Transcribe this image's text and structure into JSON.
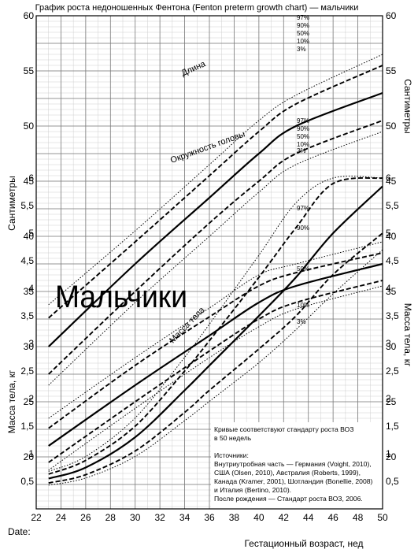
{
  "chart_data": {
    "type": "line",
    "title": "График роста недоношенных Фентона (Fenton preterm growth chart) — мальчики",
    "xlabel": "Гестационный возраст, нед",
    "x_ticks": [
      "22",
      "24",
      "26",
      "28",
      "30",
      "32",
      "34",
      "36",
      "38",
      "40",
      "42",
      "44",
      "46",
      "48",
      "50"
    ],
    "xlim": [
      22,
      50
    ],
    "cm_axis": {
      "label": "Сантиметры",
      "ticks": [
        "20",
        "25",
        "30",
        "35",
        "40",
        "45",
        "50",
        "55",
        "60"
      ],
      "range": [
        20,
        60
      ]
    },
    "kg_axis": {
      "label": "Масса тела, кг",
      "ticks": [
        "0,5",
        "1",
        "1,5",
        "2",
        "2,5",
        "3",
        "3,5",
        "4",
        "4,5",
        "5",
        "5,5",
        "6"
      ],
      "range": [
        0,
        6
      ]
    },
    "big_label": "Мальчики",
    "date_label": "Date:",
    "curve_labels": {
      "length": "Длина",
      "head": "Окружность головы",
      "weight": "Масса тела"
    },
    "percentile_names": [
      "97%",
      "90%",
      "50%",
      "10%",
      "3%"
    ],
    "series": [
      {
        "group": "length",
        "name": "97%",
        "x": [
          23,
          30,
          36,
          40,
          43,
          50
        ],
        "y": [
          33.8,
          40.5,
          46.5,
          50.5,
          52.8,
          56.5
        ]
      },
      {
        "group": "length",
        "name": "90%",
        "x": [
          23,
          30,
          36,
          40,
          43,
          50
        ],
        "y": [
          32.6,
          39.5,
          45.5,
          49.5,
          52.0,
          55.5
        ]
      },
      {
        "group": "length",
        "name": "50%",
        "x": [
          23,
          30,
          36,
          40,
          43,
          50
        ],
        "y": [
          30.0,
          37.5,
          43.5,
          47.5,
          50.0,
          53.0
        ]
      },
      {
        "group": "length",
        "name": "10%",
        "x": [
          23,
          30,
          36,
          40,
          43,
          50
        ],
        "y": [
          27.5,
          35.0,
          41.2,
          45.0,
          47.5,
          50.5
        ]
      },
      {
        "group": "length",
        "name": "3%",
        "x": [
          23,
          30,
          36,
          40,
          43,
          50
        ],
        "y": [
          26.5,
          34.0,
          40.0,
          44.0,
          46.5,
          49.5
        ]
      },
      {
        "group": "head",
        "name": "97%",
        "x": [
          23,
          30,
          36,
          40,
          43,
          50
        ],
        "y": [
          23.5,
          29.0,
          33.5,
          36.5,
          37.5,
          39.5
        ]
      },
      {
        "group": "head",
        "name": "90%",
        "x": [
          23,
          30,
          36,
          40,
          43,
          50
        ],
        "y": [
          22.6,
          28.3,
          32.7,
          35.5,
          36.7,
          38.5
        ]
      },
      {
        "group": "head",
        "name": "50%",
        "x": [
          23,
          30,
          36,
          40,
          43,
          50
        ],
        "y": [
          21.0,
          26.5,
          31.0,
          34.0,
          35.5,
          37.5
        ]
      },
      {
        "group": "head",
        "name": "10%",
        "x": [
          23,
          30,
          36,
          40,
          43,
          50
        ],
        "y": [
          19.5,
          25.0,
          29.6,
          32.5,
          34.0,
          36.0
        ]
      },
      {
        "group": "head",
        "name": "3%",
        "x": [
          23,
          30,
          36,
          40,
          43,
          50
        ],
        "y": [
          18.8,
          24.4,
          29.0,
          31.8,
          33.4,
          35.5
        ]
      },
      {
        "group": "weight",
        "name": "97%",
        "x": [
          23,
          26,
          30,
          34,
          36,
          40,
          43,
          46,
          50
        ],
        "y": [
          0.68,
          0.95,
          1.65,
          2.75,
          3.35,
          4.6,
          5.55,
          6.0,
          6.0
        ]
      },
      {
        "group": "weight",
        "name": "90%",
        "x": [
          23,
          26,
          30,
          34,
          36,
          40,
          43,
          46,
          50
        ],
        "y": [
          0.63,
          0.88,
          1.5,
          2.5,
          3.05,
          4.2,
          5.1,
          5.9,
          6.0
        ]
      },
      {
        "group": "weight",
        "name": "50%",
        "x": [
          23,
          26,
          30,
          34,
          36,
          40,
          43,
          46,
          50
        ],
        "y": [
          0.55,
          0.75,
          1.3,
          2.15,
          2.6,
          3.5,
          4.2,
          5.0,
          5.85
        ]
      },
      {
        "group": "weight",
        "name": "10%",
        "x": [
          23,
          26,
          30,
          34,
          36,
          40,
          43,
          46,
          50
        ],
        "y": [
          0.47,
          0.62,
          1.05,
          1.75,
          2.15,
          2.9,
          3.5,
          4.25,
          5.0
        ]
      },
      {
        "group": "weight",
        "name": "3%",
        "x": [
          23,
          26,
          30,
          34,
          36,
          40,
          43,
          46,
          50
        ],
        "y": [
          0.43,
          0.56,
          0.95,
          1.6,
          1.95,
          2.65,
          3.25,
          3.9,
          4.7
        ]
      }
    ],
    "note_lines": [
      "Кривые соответствуют стандарту роста ВОЗ",
      "в 50 недель",
      "",
      "Источники:",
      "Внутриутробная часть — Германия (Voight, 2010),",
      "США (Olsen, 2010), Австралия (Roberts, 1999),",
      "Канада (Kramer, 2001), Шотландия (Bonellie, 2008)",
      "и Италия (Bertino, 2010).",
      "После рождения — Стандарт роста ВОЗ, 2006."
    ],
    "grid": true
  }
}
